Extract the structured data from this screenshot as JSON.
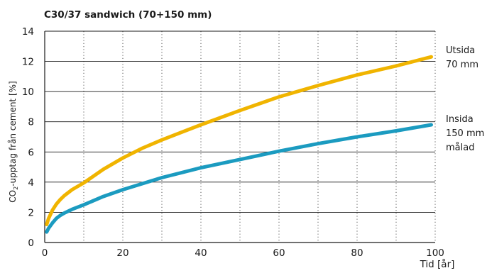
{
  "chart_data": {
    "type": "line",
    "title": "C30/37 sandwich (70+150 mm)",
    "xlabel": "Tid [år]",
    "ylabel_main": "CO",
    "ylabel_sub": "2",
    "ylabel_rest": "-upptag från cement [%]",
    "xlim": [
      0,
      100
    ],
    "ylim": [
      0,
      14
    ],
    "x_ticks": [
      0,
      20,
      40,
      60,
      80,
      100
    ],
    "y_ticks": [
      0,
      2,
      4,
      6,
      8,
      10,
      12,
      14
    ],
    "grid": {
      "horizontal": "solid",
      "vertical": "dotted",
      "vertical_step": 10
    },
    "legend_placement": "right, at line ends",
    "x": [
      0.5,
      1,
      2,
      3,
      4,
      5,
      7,
      10,
      15,
      20,
      25,
      30,
      40,
      50,
      60,
      70,
      80,
      90,
      99
    ],
    "series": [
      {
        "name_lines": [
          "Utsida",
          "70 mm"
        ],
        "color": "#f0b400",
        "values": [
          1.2,
          1.6,
          2.15,
          2.55,
          2.85,
          3.1,
          3.5,
          3.95,
          4.85,
          5.6,
          6.25,
          6.8,
          7.8,
          8.75,
          9.65,
          10.4,
          11.1,
          11.7,
          12.3
        ]
      },
      {
        "name_lines": [
          "Insida",
          "150 mm",
          "målad"
        ],
        "color": "#1b9bc0",
        "values": [
          0.7,
          0.95,
          1.3,
          1.6,
          1.8,
          1.95,
          2.2,
          2.5,
          3.05,
          3.5,
          3.9,
          4.3,
          4.95,
          5.5,
          6.05,
          6.55,
          7.0,
          7.4,
          7.8
        ]
      }
    ]
  }
}
